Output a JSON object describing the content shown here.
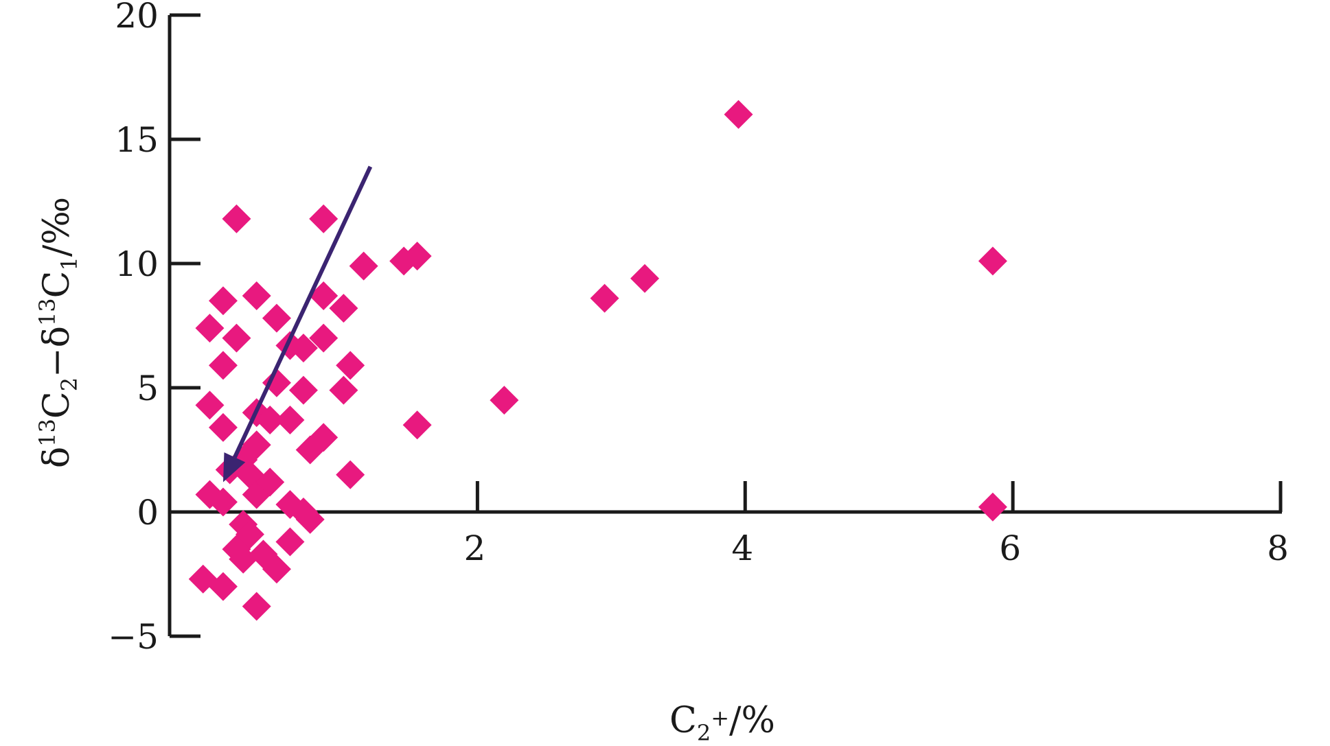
{
  "chart_data": {
    "type": "scatter",
    "title": "",
    "xlabel": {
      "main": "C",
      "sub": "2",
      "sup": "+",
      "suffix": "/%"
    },
    "ylabel": {
      "parts": [
        {
          "t": "δ"
        },
        {
          "t": "13",
          "s": "sup"
        },
        {
          "t": "C"
        },
        {
          "t": "2",
          "s": "sub"
        },
        {
          "t": "−δ"
        },
        {
          "t": "13",
          "s": "sup"
        },
        {
          "t": "C"
        },
        {
          "t": "1",
          "s": "sub"
        },
        {
          "t": "/‰"
        }
      ]
    },
    "xlim": [
      -0.3,
      8
    ],
    "ylim": [
      -5,
      20
    ],
    "xticks": [
      2,
      4,
      6,
      8
    ],
    "yticks": [
      -5,
      0,
      5,
      10,
      15,
      20
    ],
    "xtick_labels": [
      "2",
      "4",
      "6",
      "8"
    ],
    "ytick_labels": [
      "−5",
      "0",
      "5",
      "10",
      "15",
      "20"
    ],
    "grid": false,
    "legend": "none",
    "marker": "diamond",
    "point_color": "#E8197F",
    "arrow_color": "#3B2471",
    "arrow": {
      "from": [
        1.2,
        13.9
      ],
      "to": [
        0.1,
        1.2
      ]
    },
    "series": [
      {
        "points": [
          [
            0.0,
            7.4
          ],
          [
            0.0,
            4.3
          ],
          [
            0.0,
            0.7
          ],
          [
            -0.05,
            -2.7
          ],
          [
            0.1,
            8.5
          ],
          [
            0.1,
            5.9
          ],
          [
            0.1,
            3.4
          ],
          [
            0.1,
            0.4
          ],
          [
            0.1,
            -3.0
          ],
          [
            0.2,
            11.8
          ],
          [
            0.2,
            7.0
          ],
          [
            0.15,
            1.7
          ],
          [
            0.25,
            2.1
          ],
          [
            0.25,
            -0.5
          ],
          [
            0.2,
            -1.5
          ],
          [
            0.25,
            -1.9
          ],
          [
            0.3,
            1.5
          ],
          [
            0.3,
            -0.9
          ],
          [
            0.35,
            8.7
          ],
          [
            0.35,
            4.0
          ],
          [
            0.35,
            2.7
          ],
          [
            0.35,
            0.7
          ],
          [
            0.35,
            -3.8
          ],
          [
            0.4,
            -1.7
          ],
          [
            0.45,
            1.2
          ],
          [
            0.45,
            3.7
          ],
          [
            0.5,
            7.8
          ],
          [
            0.5,
            5.2
          ],
          [
            0.5,
            -2.3
          ],
          [
            0.6,
            6.7
          ],
          [
            0.6,
            3.7
          ],
          [
            0.6,
            0.3
          ],
          [
            0.6,
            -1.2
          ],
          [
            0.7,
            6.6
          ],
          [
            0.7,
            4.9
          ],
          [
            0.7,
            0.0
          ],
          [
            0.75,
            2.5
          ],
          [
            0.75,
            -0.3
          ],
          [
            0.85,
            11.8
          ],
          [
            0.85,
            8.7
          ],
          [
            0.85,
            7.0
          ],
          [
            0.85,
            3.0
          ],
          [
            1.0,
            8.2
          ],
          [
            1.0,
            4.9
          ],
          [
            1.05,
            5.9
          ],
          [
            1.05,
            1.5
          ],
          [
            1.15,
            9.9
          ],
          [
            1.45,
            10.1
          ],
          [
            1.55,
            10.3
          ],
          [
            1.55,
            3.5
          ],
          [
            2.2,
            4.5
          ],
          [
            2.95,
            8.6
          ],
          [
            3.25,
            9.4
          ],
          [
            3.95,
            16.0
          ],
          [
            5.85,
            10.1
          ],
          [
            5.85,
            0.2
          ]
        ]
      }
    ]
  }
}
